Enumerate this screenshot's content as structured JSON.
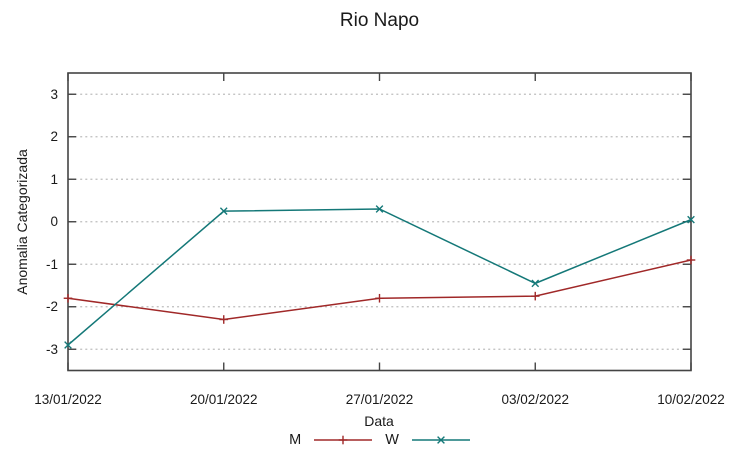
{
  "title": "Rio Napo",
  "chart_data": {
    "type": "line",
    "title": "Rio Napo",
    "xlabel": "Data",
    "ylabel": "Anomalia Categorizada",
    "categories": [
      "13/01/2022",
      "20/01/2022",
      "27/01/2022",
      "03/02/2022",
      "10/02/2022"
    ],
    "series": [
      {
        "name": "M",
        "color": "#a02828",
        "marker": "plus",
        "values": [
          -1.8,
          -2.3,
          -1.8,
          -1.75,
          -0.9
        ]
      },
      {
        "name": "W",
        "color": "#147878",
        "marker": "cross",
        "values": [
          -2.9,
          0.25,
          0.3,
          -1.45,
          0.05
        ]
      }
    ],
    "yticks": [
      3,
      2,
      1,
      0,
      -1,
      -2,
      -3
    ],
    "ylim": [
      -3.5,
      3.5
    ],
    "grid": "horizontal-dotted",
    "legend_position": "bottom-center"
  },
  "colors": {
    "background": "#ffffff",
    "border": "#444444",
    "grid": "#bdbdbd",
    "text": "#1a1a1a"
  }
}
